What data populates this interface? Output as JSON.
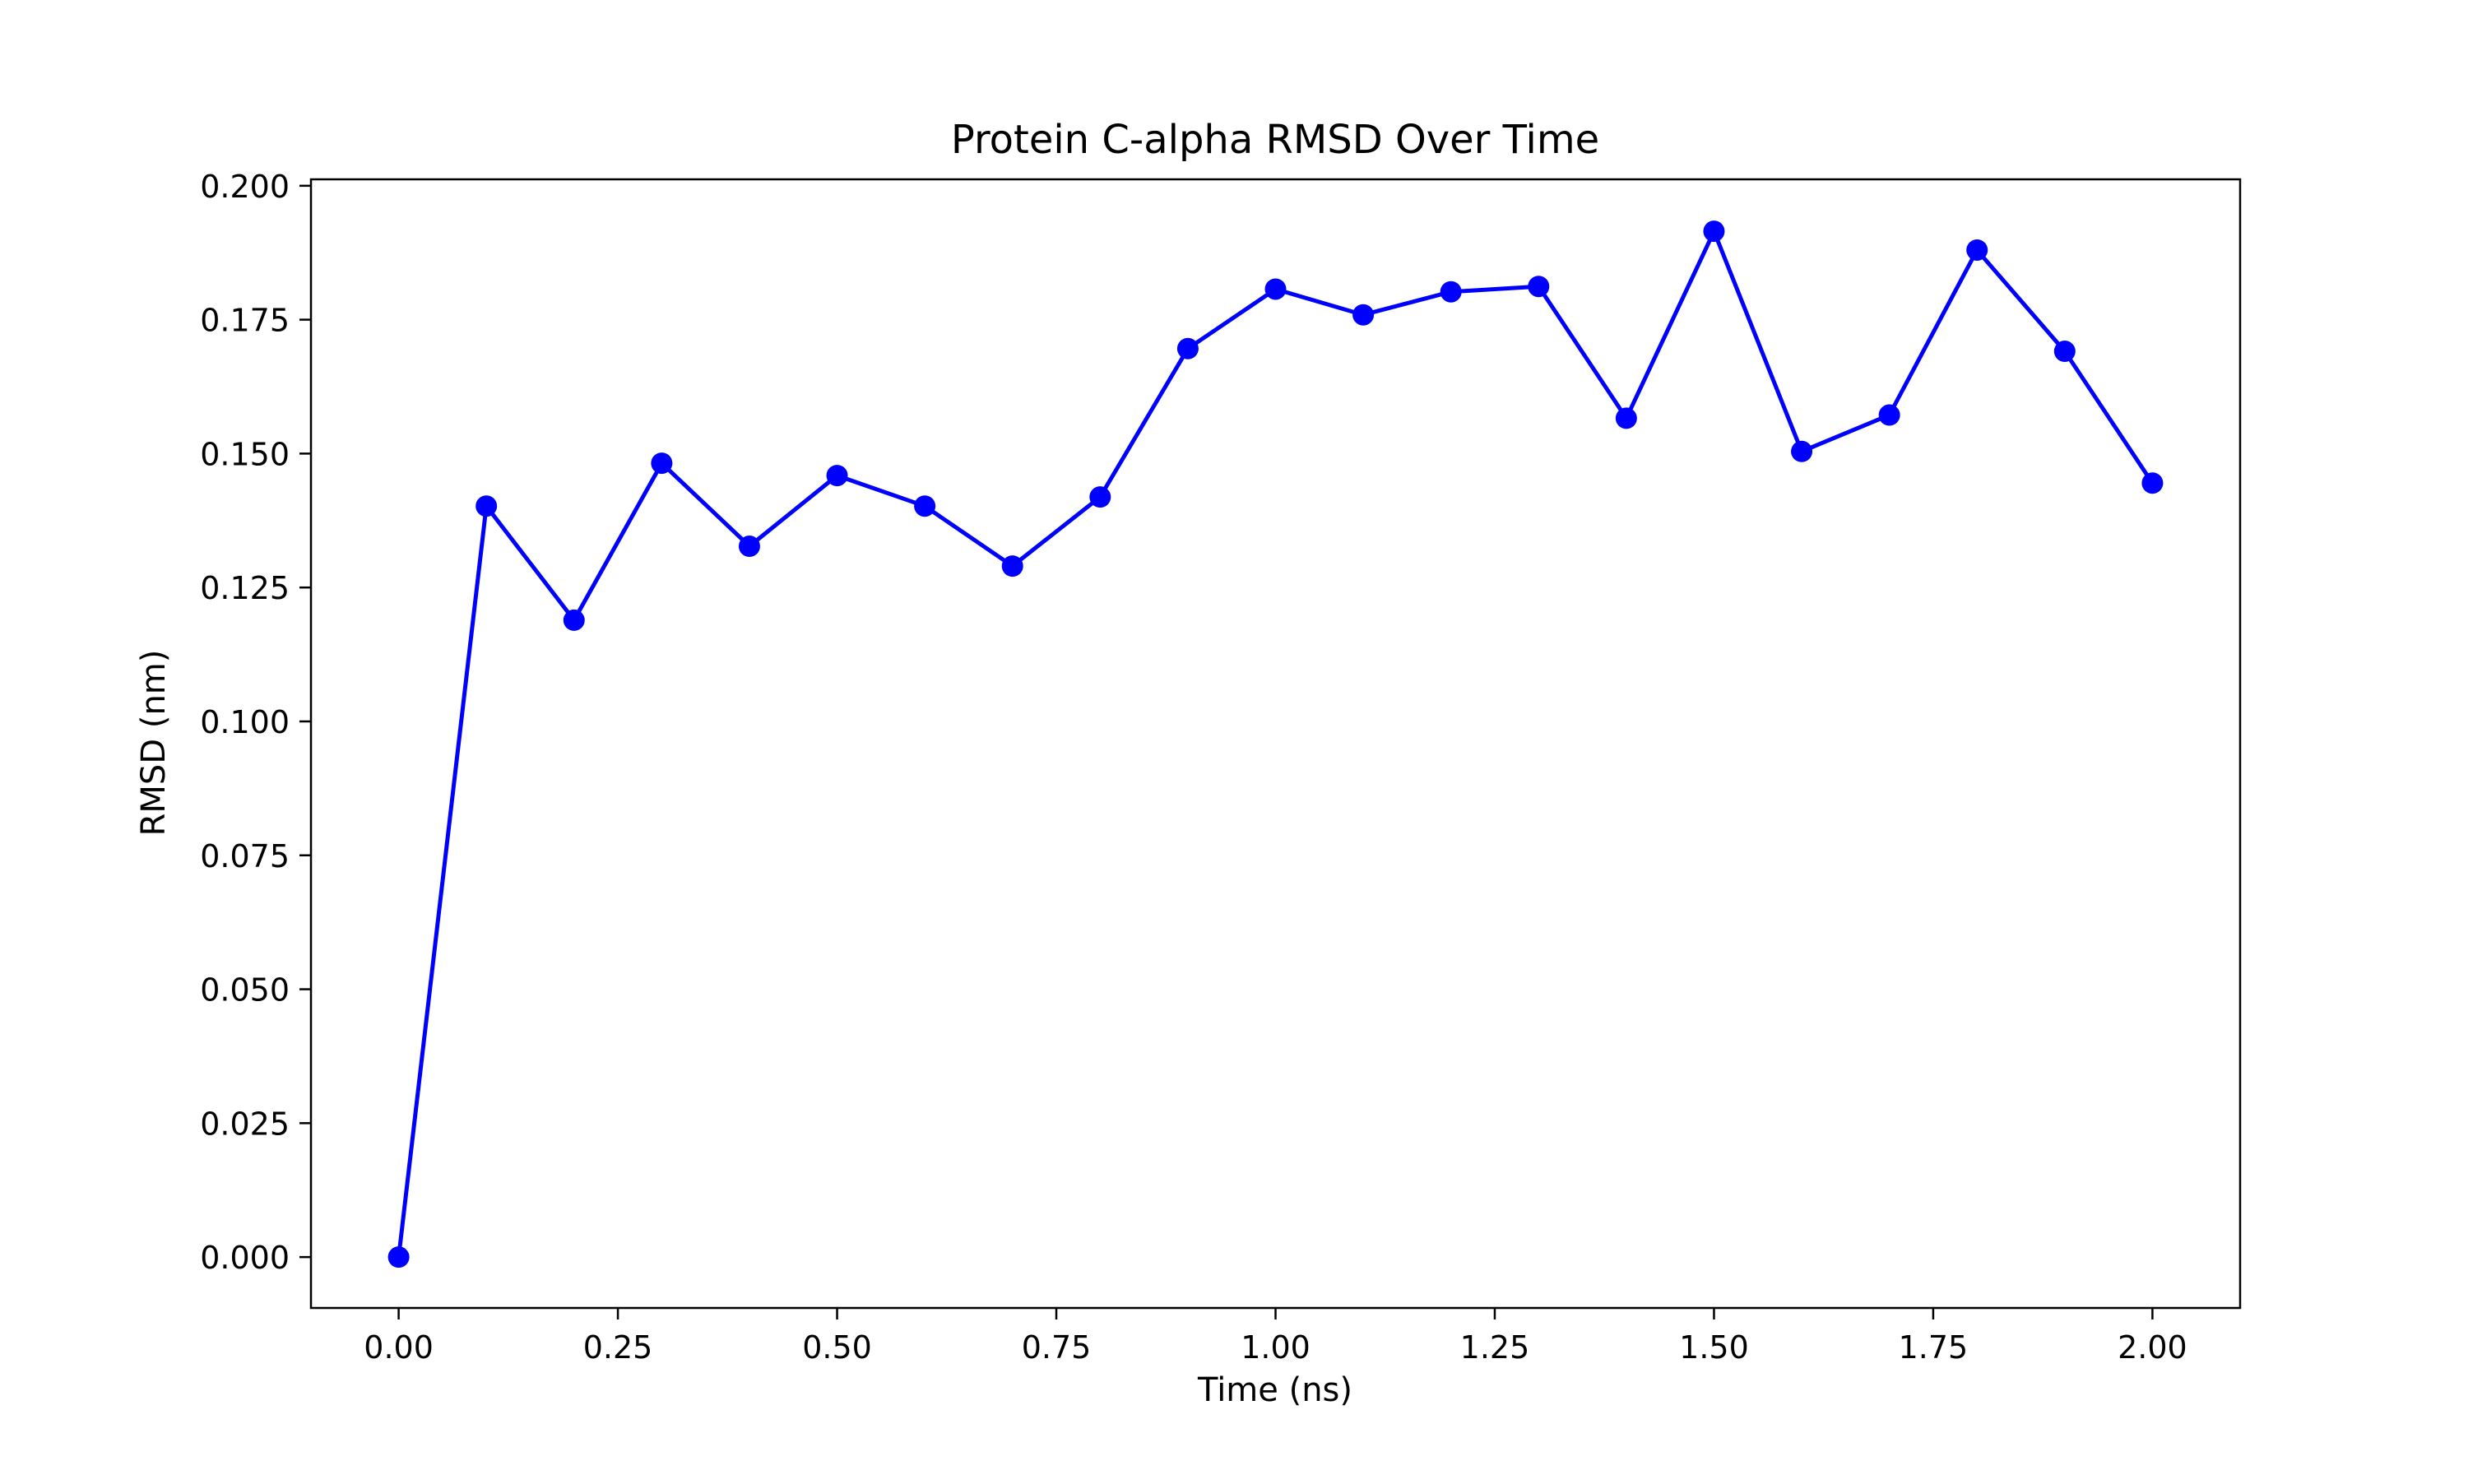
{
  "chart_data": {
    "type": "line",
    "title": "Protein C-alpha RMSD Over Time",
    "xlabel": "Time (ns)",
    "ylabel": "RMSD (nm)",
    "xlim": [
      -0.1,
      2.1
    ],
    "ylim": [
      -0.0095,
      0.2012
    ],
    "xticks": [
      0.0,
      0.25,
      0.5,
      0.75,
      1.0,
      1.25,
      1.5,
      1.75,
      2.0
    ],
    "xtick_labels": [
      "0.00",
      "0.25",
      "0.50",
      "0.75",
      "1.00",
      "1.25",
      "1.50",
      "1.75",
      "2.00"
    ],
    "yticks": [
      0.0,
      0.025,
      0.05,
      0.075,
      0.1,
      0.125,
      0.15,
      0.175,
      0.2
    ],
    "ytick_labels": [
      "0.000",
      "0.025",
      "0.050",
      "0.075",
      "0.100",
      "0.125",
      "0.150",
      "0.175",
      "0.200"
    ],
    "grid": false,
    "legend": false,
    "series": [
      {
        "color": "#0000ff",
        "marker": "circle",
        "x": [
          0.0,
          0.1,
          0.2,
          0.3,
          0.4,
          0.5,
          0.6,
          0.7,
          0.8,
          0.9,
          1.0,
          1.1,
          1.2,
          1.3,
          1.4,
          1.5,
          1.6,
          1.7,
          1.8,
          1.9,
          2.0
        ],
        "y": [
          0.0,
          0.1402,
          0.1189,
          0.1482,
          0.1327,
          0.1459,
          0.1402,
          0.129,
          0.1419,
          0.1696,
          0.1807,
          0.1759,
          0.1802,
          0.1812,
          0.1566,
          0.1915,
          0.1504,
          0.1572,
          0.188,
          0.1691,
          0.1445
        ]
      }
    ]
  }
}
